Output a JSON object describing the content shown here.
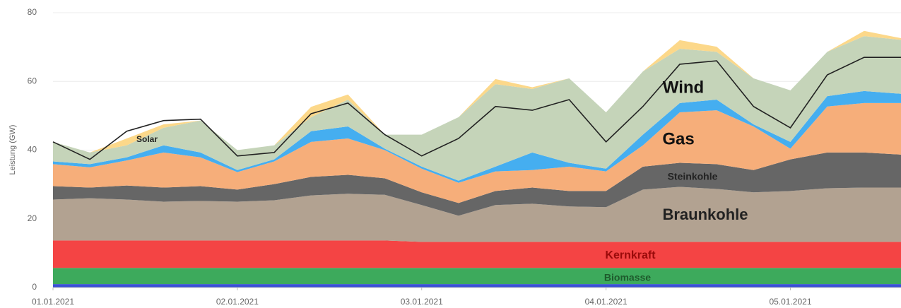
{
  "chart_data": {
    "type": "area",
    "stacked": true,
    "y_label": "Leistung (GW)",
    "x": [
      0,
      0.2,
      0.4,
      0.6,
      0.8,
      1.0,
      1.2,
      1.4,
      1.6,
      1.8,
      2.0,
      2.2,
      2.4,
      2.6,
      2.8,
      3.0,
      3.2,
      3.4,
      3.6,
      3.8,
      4.0,
      4.2,
      4.4,
      4.6
    ],
    "xlim": [
      0,
      4.6
    ],
    "xticks": [
      {
        "value": 0,
        "label": "01.01.2021"
      },
      {
        "value": 1,
        "label": "02.01.2021"
      },
      {
        "value": 2,
        "label": "03.01.2021"
      },
      {
        "value": 3,
        "label": "04.01.2021"
      },
      {
        "value": 4,
        "label": "05.01.2021"
      }
    ],
    "ylim": [
      0,
      80
    ],
    "yticks": [
      0,
      20,
      40,
      60,
      80
    ],
    "grid": true,
    "series": [
      {
        "color": "#3a4fd6",
        "values": [
          1,
          1,
          1,
          1,
          1,
          1,
          1,
          1,
          1,
          1,
          1,
          1,
          1,
          1,
          1,
          1,
          1,
          1,
          1,
          1,
          1,
          1,
          1,
          1
        ]
      },
      {
        "name": "Biomasse",
        "color": "#3daa5c",
        "values": [
          4.7,
          4.7,
          4.7,
          4.7,
          4.7,
          4.7,
          4.7,
          4.7,
          4.7,
          4.7,
          4.7,
          4.7,
          4.7,
          4.7,
          4.7,
          4.7,
          4.7,
          4.7,
          4.7,
          4.7,
          4.7,
          4.7,
          4.7,
          4.7
        ]
      },
      {
        "name": "Kernkraft",
        "color": "#f44444",
        "values": [
          8,
          8,
          8,
          8,
          8,
          8,
          8,
          8,
          8,
          8,
          7.6,
          7.6,
          7.6,
          7.6,
          7.6,
          7.6,
          7.6,
          7.6,
          7.6,
          7.6,
          7.6,
          7.6,
          7.6,
          7.6
        ]
      },
      {
        "name": "Braunkohle",
        "color": "#b2a291",
        "values": [
          11.9,
          12.3,
          11.9,
          11.3,
          11.5,
          11.3,
          11.7,
          13.1,
          13.6,
          13.3,
          10.7,
          7.6,
          10.7,
          11.1,
          10.3,
          10.1,
          15.2,
          16,
          15.4,
          14.4,
          14.8,
          15.6,
          15.8,
          15.8
        ]
      },
      {
        "name": "Steinkohle",
        "color": "#666666",
        "values": [
          3.9,
          3.1,
          4.1,
          4.1,
          4.3,
          3.5,
          4.7,
          5.4,
          5.5,
          4.8,
          3.7,
          3.7,
          4.1,
          4.7,
          4.5,
          4.7,
          6.7,
          7,
          7.2,
          6.5,
          9.2,
          10.4,
          10.2,
          9.6
        ]
      },
      {
        "name": "Gas",
        "color": "#f6ae7a",
        "values": [
          6.4,
          5.9,
          7.3,
          10.2,
          8.4,
          5.1,
          6.6,
          10.2,
          10.6,
          8.2,
          6.9,
          5.9,
          5.7,
          5.1,
          7.1,
          5.7,
          6.2,
          14.7,
          15.7,
          12.7,
          3.1,
          13.4,
          14.4,
          15
        ]
      },
      {
        "color": "#45aef0",
        "values": [
          0.8,
          0.9,
          0.9,
          2.1,
          1.4,
          0.6,
          0.6,
          3.1,
          3.5,
          0.4,
          0.6,
          0.6,
          1.4,
          5.1,
          1.1,
          0.8,
          3.1,
          2.7,
          3.1,
          0.6,
          2,
          3,
          3.5,
          2.7
        ]
      },
      {
        "name": "Wind",
        "color": "#c5d4b9",
        "values": [
          5.7,
          3.4,
          3.5,
          5.1,
          9.3,
          5.8,
          4.1,
          4.1,
          7.8,
          4.1,
          9.3,
          18.5,
          24,
          18.5,
          24.6,
          16.4,
          18.4,
          15.8,
          13.9,
          13.4,
          15,
          12.9,
          16,
          15.7
        ]
      },
      {
        "name": "Solar",
        "color": "#fcd88a",
        "values": [
          0,
          0,
          2,
          1,
          0,
          0,
          0,
          3,
          1.5,
          0,
          0,
          0,
          1.5,
          0.5,
          0,
          0,
          0,
          2.5,
          1.5,
          0,
          0,
          0,
          1.5,
          0.5
        ]
      },
      {
        "type": "line",
        "color": "#222222",
        "values": [
          42.4,
          37.3,
          45.5,
          48.6,
          49,
          38.3,
          39.3,
          50.6,
          53.7,
          44.5,
          38.3,
          43.4,
          52.7,
          51.6,
          54.7,
          42.4,
          52.7,
          65,
          66,
          52.7,
          46.5,
          61.9,
          67,
          67
        ]
      }
    ]
  }
}
